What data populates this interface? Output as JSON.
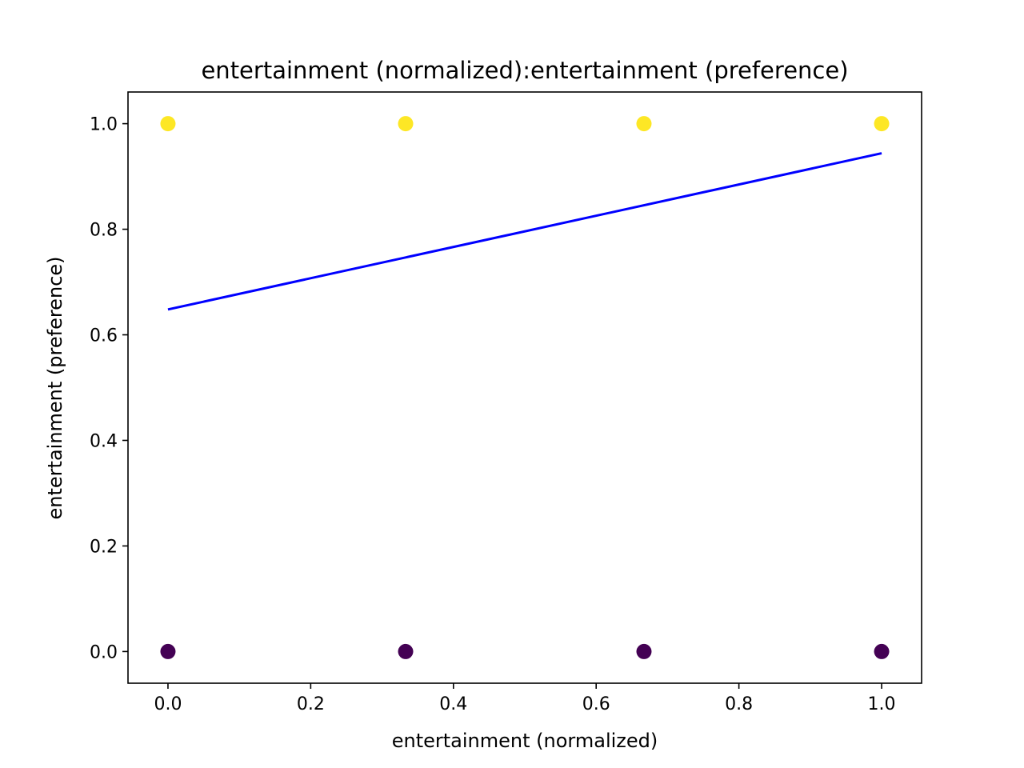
{
  "chart_data": {
    "type": "scatter",
    "title": "entertainment (normalized):entertainment (preference)",
    "xlabel": "entertainment (normalized)",
    "ylabel": "entertainment (preference)",
    "xlim": [
      -0.056,
      1.056
    ],
    "ylim": [
      -0.06,
      1.06
    ],
    "xticks": [
      0.0,
      0.2,
      0.4,
      0.6,
      0.8,
      1.0
    ],
    "xtick_labels": [
      "0.0",
      "0.2",
      "0.4",
      "0.6",
      "0.8",
      "1.0"
    ],
    "yticks": [
      0.0,
      0.2,
      0.4,
      0.6,
      0.8,
      1.0
    ],
    "ytick_labels": [
      "0.0",
      "0.2",
      "0.4",
      "0.6",
      "0.8",
      "1.0"
    ],
    "grid": false,
    "legend": "none",
    "points": [
      {
        "x": 0.0,
        "y": 1.0,
        "color": "#fde725"
      },
      {
        "x": 0.333,
        "y": 1.0,
        "color": "#fde725"
      },
      {
        "x": 0.667,
        "y": 1.0,
        "color": "#fde725"
      },
      {
        "x": 1.0,
        "y": 1.0,
        "color": "#fde725"
      },
      {
        "x": 0.0,
        "y": 0.0,
        "color": "#440154"
      },
      {
        "x": 0.333,
        "y": 0.0,
        "color": "#440154"
      },
      {
        "x": 0.667,
        "y": 0.0,
        "color": "#440154"
      },
      {
        "x": 1.0,
        "y": 0.0,
        "color": "#440154"
      }
    ],
    "fit_line": {
      "x": [
        0.0,
        1.0
      ],
      "y": [
        0.648,
        0.944
      ],
      "color": "#0000ff"
    }
  }
}
